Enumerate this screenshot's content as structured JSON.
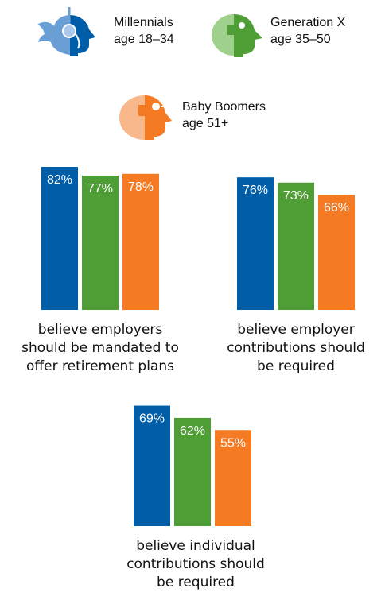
{
  "colors": {
    "millennials": "#005da8",
    "millennials_light": "#6a9fd6",
    "genx": "#4f9d35",
    "genx_light": "#9fd08c",
    "boomers": "#f47a24",
    "boomers_light": "#f9b88c"
  },
  "legend": [
    {
      "name": "Millennials",
      "age": "age 18–34",
      "icon": "millennial-head-icon"
    },
    {
      "name": "Generation X",
      "age": "age 35–50",
      "icon": "genx-head-icon"
    },
    {
      "name": "Baby Boomers",
      "age": "age 51+",
      "icon": "boomer-head-icon"
    }
  ],
  "chart_data": [
    {
      "type": "bar",
      "categories": [
        "Millennials",
        "Generation X",
        "Baby Boomers"
      ],
      "values": [
        82,
        77,
        78
      ],
      "value_labels": [
        "82%",
        "77%",
        "78%"
      ],
      "caption": [
        "believe employers",
        "should be mandated to",
        "offer retirement plans"
      ]
    },
    {
      "type": "bar",
      "categories": [
        "Millennials",
        "Generation X",
        "Baby Boomers"
      ],
      "values": [
        76,
        73,
        66
      ],
      "value_labels": [
        "76%",
        "73%",
        "66%"
      ],
      "caption": [
        "believe employer",
        "contributions should",
        "be required"
      ]
    },
    {
      "type": "bar",
      "categories": [
        "Millennials",
        "Generation X",
        "Baby Boomers"
      ],
      "values": [
        69,
        62,
        55
      ],
      "value_labels": [
        "69%",
        "62%",
        "55%"
      ],
      "caption": [
        "believe individual",
        "contributions should",
        "be required"
      ]
    }
  ]
}
